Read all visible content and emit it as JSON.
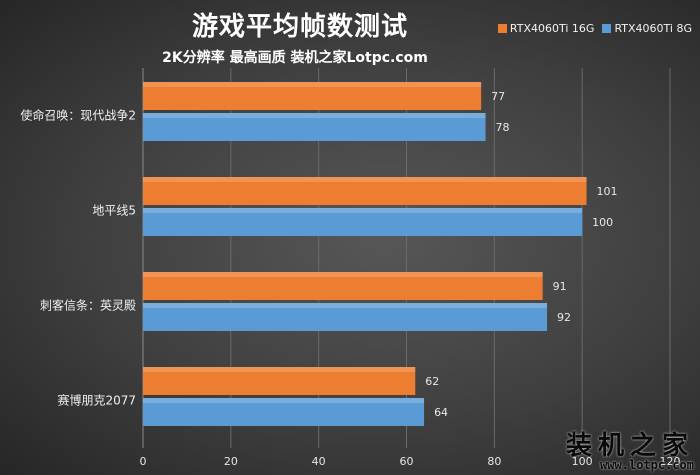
{
  "chart_data": {
    "type": "bar",
    "orientation": "horizontal",
    "title": "游戏平均帧数测试",
    "subtitle": "2K分辨率 最高画质 装机之家Lotpc.com",
    "categories": [
      "使命召唤：现代战争2",
      "地平线5",
      "刺客信条：英灵殿",
      "赛博朋克2077"
    ],
    "series": [
      {
        "name": "RTX4060Ti 16G",
        "color": "#ed7d31",
        "values": [
          77,
          101,
          91,
          62
        ]
      },
      {
        "name": "RTX4060Ti 8G",
        "color": "#5b9bd5",
        "values": [
          78,
          100,
          92,
          64
        ]
      }
    ],
    "xlim": [
      0,
      120
    ],
    "xticks": [
      "0",
      "20",
      "40",
      "60",
      "80",
      "100",
      "120"
    ],
    "grid": true,
    "legend_position": "top-right"
  },
  "watermark": {
    "text_cn": "装机之家",
    "text_url": "www.lotpc.com"
  }
}
